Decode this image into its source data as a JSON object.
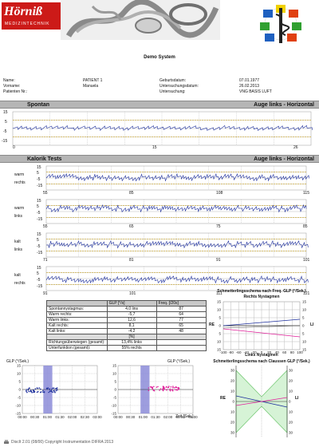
{
  "header": {
    "logo_text": "Hörniß",
    "logo_subtext": "MEDIZINTECHNIK",
    "report_title": "Demo System"
  },
  "patient": {
    "name_label": "Name:",
    "name_value": "PATIENT 1",
    "firstname_label": "Vorname:",
    "firstname_value": "Manuela",
    "patientnr_label": "Patienten Nr.:",
    "birth_label": "Geburtsdatum:",
    "birth_value": "07.01.1977",
    "exam_date_label": "Untersuchungsdatum:",
    "exam_date_value": "26.02.2013",
    "exam_label": "Untersuchung:",
    "exam_value": "VNG BASIS LUFT"
  },
  "spontan": {
    "title": "Spontan",
    "subtitle": "Auge links - Horizontal",
    "y_ticks": [
      "15",
      "5",
      "-5",
      "-15"
    ],
    "x_ticks": [
      "0",
      "15",
      "26"
    ]
  },
  "kalorik": {
    "title": "Kalorik Tests",
    "subtitle": "Auge links - Horizontal",
    "y_ticks": [
      "15",
      "5",
      "-5",
      "-15"
    ],
    "plots": [
      {
        "label1": "warm",
        "label2": "rechts",
        "x_ticks": [
          "55",
          "85",
          "108",
          "115"
        ]
      },
      {
        "label1": "warm",
        "label2": "links",
        "x_ticks": [
          "55",
          "65",
          "75",
          "85"
        ]
      },
      {
        "label1": "kalt",
        "label2": "links",
        "x_ticks": [
          "71",
          "81",
          "91",
          "101"
        ]
      },
      {
        "label1": "kalt",
        "label2": "rechts",
        "x_ticks": [
          "91",
          "101",
          "111",
          "121"
        ]
      }
    ]
  },
  "stats": {
    "col1_header": "GLP [°/s]",
    "col2_header": "Freq. [/20s]",
    "rows": [
      {
        "label": "Spontannystagmus:",
        "v1": "4,0 lins",
        "v2": "87"
      },
      {
        "label": "Warm rechts:",
        "v1": "-5,7",
        "v2": "64"
      },
      {
        "label": "Warm links:",
        "v1": "12,6",
        "v2": "77"
      },
      {
        "label": "Kalt rechts:",
        "v1": "8,1",
        "v2": "65"
      },
      {
        "label": "Kalt links:",
        "v1": "-4,2",
        "v2": "48"
      }
    ],
    "pct_header": "[%]",
    "rows2": [
      {
        "label": "Richtungsüberwiegen (gesamt):",
        "v1": "13,4% links"
      },
      {
        "label": "Unterfunktion (gesamt):",
        "v1": "55% rechts"
      }
    ]
  },
  "butterfly_freq": {
    "title": "Schmetterlingsschema nach Freq. GLP (°/Sek.)",
    "top_label": "Rechts Nystagmen",
    "bottom_label": "Links Nystagmen",
    "left_label": "RE",
    "right_label": "LI",
    "y_ticks": [
      "15",
      "10",
      "5",
      "0",
      "5",
      "10",
      "15"
    ],
    "x_ticks": [
      "-100",
      "-80",
      "-60",
      "-40",
      "-20",
      "0",
      "20",
      "40",
      "60",
      "80",
      "100"
    ]
  },
  "butterfly_claussen": {
    "title": "Schmetterlingsschema nach Claussen GLP (°/Sek.)",
    "left_label": "RE",
    "right_label": "LI",
    "y_ticks": [
      "30",
      "20",
      "10",
      "0",
      "10",
      "20",
      "30"
    ]
  },
  "glp_left": {
    "y_label": "GLP (°/Sek.)",
    "y_ticks": [
      "15",
      "10",
      "5",
      "0",
      "-5",
      "-10",
      "-15"
    ],
    "x_ticks": [
      "00:00",
      "00:30",
      "01:00",
      "01:30",
      "02:00",
      "02:30",
      "03:00"
    ]
  },
  "glp_right": {
    "y_label": "GLP (°/Sek.)",
    "y_ticks": [
      "15",
      "10",
      "5",
      "0",
      "-5",
      "-10",
      "-15"
    ],
    "x_ticks": [
      "00:00",
      "00:30",
      "01:00",
      "01:30",
      "02:00",
      "02:30",
      "03:00"
    ],
    "x_unit": "Zeit [Sek.]"
  },
  "footer": {
    "text": "DiscIt 2.01 (08/00)  Copyright Instrumentation DIFRA 2013"
  },
  "colors": {
    "trace": "#1d2f9c",
    "dashed": "#d0a000",
    "pink": "#e0209a",
    "highlight": "#8c8cd8",
    "bar": "#b5b5b5"
  }
}
